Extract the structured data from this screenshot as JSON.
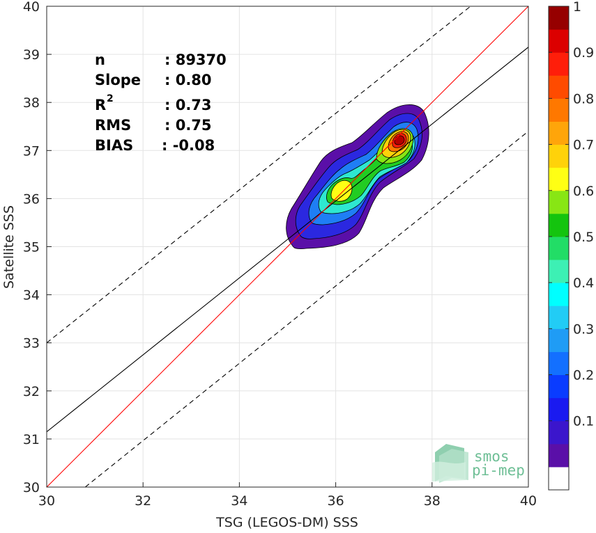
{
  "chart_data": {
    "type": "density-scatter",
    "xlabel": "TSG (LEGOS-DM) SSS",
    "ylabel": "Satellite SSS",
    "xlim": [
      30,
      40
    ],
    "ylim": [
      30,
      40
    ],
    "xticks": [
      "30",
      "32",
      "34",
      "36",
      "38",
      "40"
    ],
    "yticks": [
      "30",
      "31",
      "32",
      "33",
      "34",
      "35",
      "36",
      "37",
      "38",
      "39",
      "40"
    ],
    "grid": true,
    "stats": [
      {
        "label": "n",
        "value": ": 89370"
      },
      {
        "label": "Slope",
        "value": ": 0.80"
      },
      {
        "label": "R",
        "sup": "2",
        "value": ": 0.73"
      },
      {
        "label": "RMS",
        "value": ": 0.75"
      },
      {
        "label": "BIAS",
        "value": ": -0.08"
      }
    ],
    "lines": {
      "one_to_one": {
        "x": [
          30,
          40
        ],
        "y": [
          30,
          40
        ],
        "color": "#ff0000"
      },
      "regression": {
        "x": [
          30,
          40
        ],
        "y": [
          31.15,
          39.15
        ],
        "color": "#000000"
      },
      "upper_dashed": {
        "x": [
          30,
          38.8
        ],
        "y": [
          33,
          40
        ],
        "color": "#000000"
      },
      "lower_dashed": {
        "x": [
          30.8,
          40
        ],
        "y": [
          30,
          37.4
        ],
        "color": "#000000"
      }
    },
    "density_peaks": [
      {
        "x": 37.3,
        "y": 37.2,
        "value": 1.0
      },
      {
        "x": 36.15,
        "y": 36.05,
        "value": 0.62
      }
    ],
    "colorbar": {
      "min": 0,
      "max": 1,
      "ticks": [
        "0.1",
        "0.2",
        "0.3",
        "0.4",
        "0.5",
        "0.6",
        "0.7",
        "0.8",
        "0.9",
        "1"
      ],
      "colors": [
        "#ffffff",
        "#5a0fa8",
        "#3b16cc",
        "#1a1af0",
        "#0a3cff",
        "#1370ff",
        "#1f9cf5",
        "#22ccf5",
        "#00ffff",
        "#3df0b4",
        "#22dd66",
        "#14c40e",
        "#88e614",
        "#ffff14",
        "#ffd20a",
        "#ffa50a",
        "#ff7800",
        "#ff4b00",
        "#ff1e0a",
        "#dc0000",
        "#960000"
      ]
    }
  },
  "logo": {
    "line1": "smos",
    "line2": "pi-mep"
  }
}
